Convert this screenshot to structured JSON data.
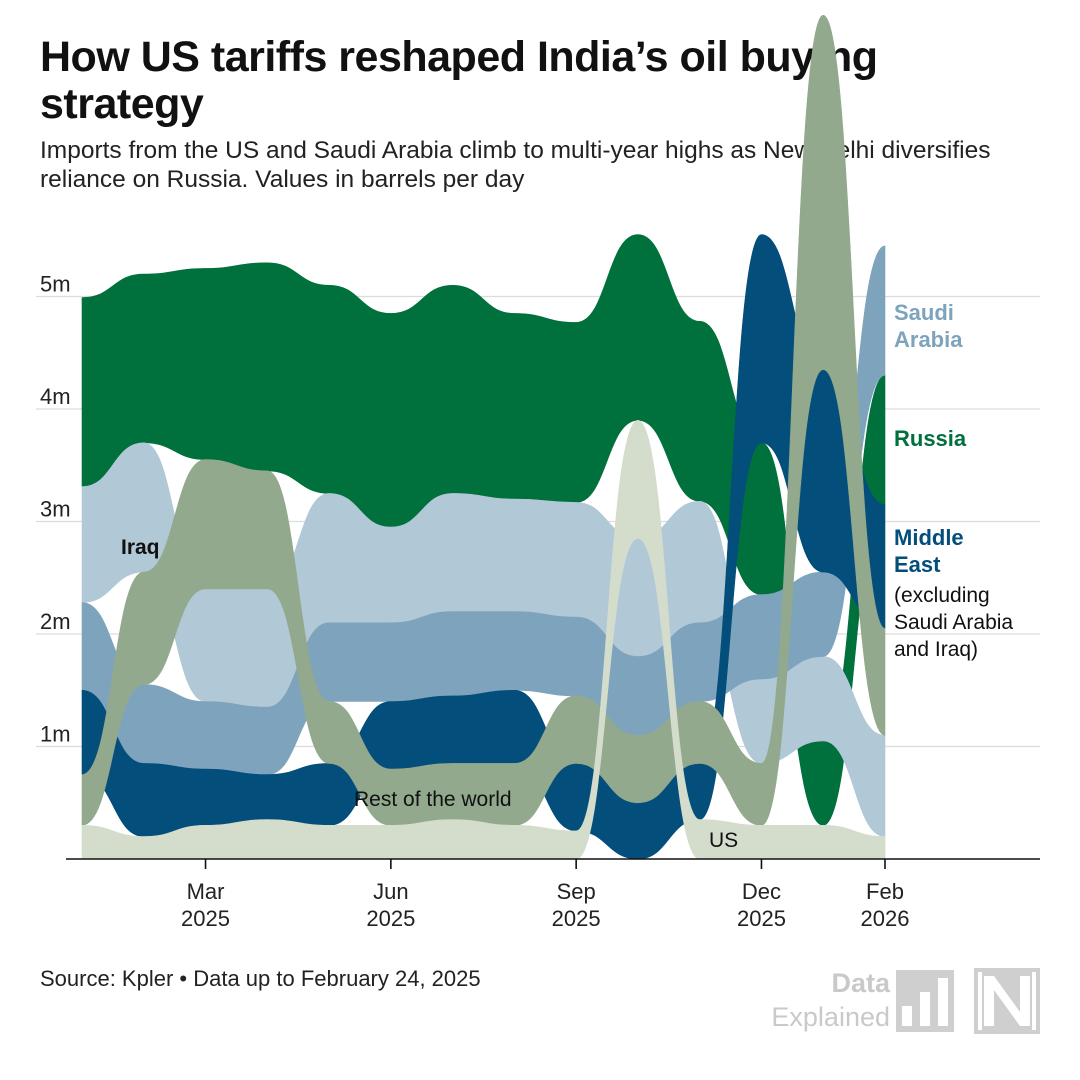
{
  "header": {
    "title": "How US tariffs reshaped India’s oil buying strategy",
    "subtitle": "Imports from the US and Saudi Arabia climb to multi-year highs as New Delhi diversifies reliance on Russia. Values in barrels per day"
  },
  "footer": {
    "source": "Source: Kpler • Data up to February 24, 2025",
    "brand_top": "Data",
    "brand_bottom": "Explained"
  },
  "chart_data": {
    "type": "area",
    "subtype": "stacked streamgraph, series re-ordered by volume each month",
    "unit": "barrels per day",
    "ylim": [
      0,
      5500000
    ],
    "y_ticks": [
      {
        "value": 1000000,
        "label": "1m"
      },
      {
        "value": 2000000,
        "label": "2m"
      },
      {
        "value": 3000000,
        "label": "3m"
      },
      {
        "value": 4000000,
        "label": "4m"
      },
      {
        "value": 5000000,
        "label": "5m"
      }
    ],
    "grid": true,
    "x": [
      "2025-01",
      "2025-02",
      "2025-03",
      "2025-04",
      "2025-05",
      "2025-06",
      "2025-07",
      "2025-08",
      "2025-09",
      "2025-10",
      "2025-11",
      "2025-12",
      "2026-01",
      "2026-02"
    ],
    "x_ticks": [
      {
        "index": 2,
        "line1": "Mar",
        "line2": "2025"
      },
      {
        "index": 5,
        "line1": "Jun",
        "line2": "2025"
      },
      {
        "index": 8,
        "line1": "Sep",
        "line2": "2025"
      },
      {
        "index": 11,
        "line1": "Dec",
        "line2": "2025"
      },
      {
        "index": 13,
        "line1": "Feb",
        "line2": "2026"
      }
    ],
    "series": [
      {
        "name": "Russia",
        "color": "#00703c",
        "values": [
          1680000,
          1500000,
          1700000,
          1850000,
          1850000,
          1900000,
          1850000,
          1650000,
          1600000,
          1650000,
          1600000,
          1350000,
          750000,
          1150000
        ]
      },
      {
        "name": "Iraq",
        "color": "#b1c8d6",
        "values": [
          1030000,
          1150000,
          1000000,
          1050000,
          1150000,
          850000,
          1050000,
          1000000,
          1020000,
          1050000,
          1080000,
          750000,
          750000,
          900000
        ]
      },
      {
        "name": "Saudi Arabia",
        "color": "#7ea3bc",
        "values": [
          780000,
          700000,
          600000,
          600000,
          700000,
          700000,
          750000,
          700000,
          700000,
          700000,
          700000,
          750000,
          750000,
          1150000
        ]
      },
      {
        "name": "Middle East",
        "color": "#034e7b",
        "values": [
          750000,
          650000,
          500000,
          400000,
          550000,
          600000,
          600000,
          650000,
          600000,
          500000,
          500000,
          1850000,
          1800000,
          1100000
        ]
      },
      {
        "name": "Rest of the world",
        "color": "#93a98d",
        "values": [
          450000,
          1000000,
          1150000,
          1050000,
          550000,
          500000,
          500000,
          550000,
          600000,
          600000,
          550000,
          550000,
          3150000,
          950000
        ]
      },
      {
        "name": "US",
        "color": "#d4dccb",
        "values": [
          300000,
          200000,
          300000,
          350000,
          300000,
          300000,
          350000,
          300000,
          250000,
          1050000,
          350000,
          300000,
          300000,
          200000
        ]
      }
    ],
    "labels": {
      "iraq": "Iraq",
      "rest_of_world": "Rest of the world",
      "us": "US",
      "saudi_line1": "Saudi",
      "saudi_line2": "Arabia",
      "russia": "Russia",
      "middle_east_line1": "Middle",
      "middle_east_line2": "East",
      "middle_east_note1": "(excluding",
      "middle_east_note2": "Saudi Arabia",
      "middle_east_note3": "and Iraq)"
    }
  }
}
